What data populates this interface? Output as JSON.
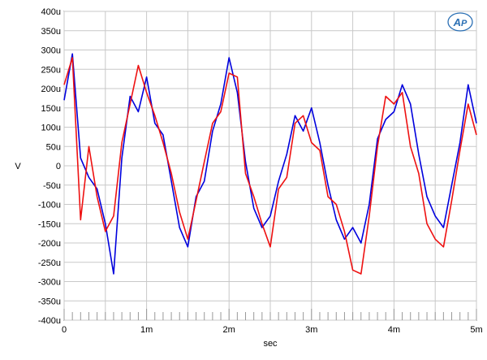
{
  "chart_data": {
    "type": "line",
    "title": "",
    "xlabel": "sec",
    "ylabel": "V",
    "xlim": [
      0,
      0.005
    ],
    "ylim": [
      -0.0004,
      0.0004
    ],
    "grid": true,
    "legend": "none",
    "x_tick_labels": [
      "0",
      "1m",
      "2m",
      "3m",
      "4m",
      "5m"
    ],
    "x_tick_values": [
      0,
      0.001,
      0.002,
      0.003,
      0.004,
      0.005
    ],
    "y_tick_labels": [
      "400u",
      "350u",
      "300u",
      "250u",
      "200u",
      "150u",
      "100u",
      "50u",
      "0",
      "-50u",
      "-100u",
      "-150u",
      "-200u",
      "-250u",
      "-300u",
      "-350u",
      "-400u"
    ],
    "y_tick_values": [
      0.0004,
      0.00035,
      0.0003,
      0.00025,
      0.0002,
      0.00015,
      0.0001,
      5e-05,
      0,
      -5e-05,
      -0.0001,
      -0.00015,
      -0.0002,
      -0.00025,
      -0.0003,
      -0.00035,
      -0.0004
    ],
    "logo_text": "AP",
    "colors": {
      "series1": "#0000dd",
      "series2": "#ee1111",
      "grid": "#c8c8c8",
      "logo": "#2a6fb4"
    },
    "series": [
      {
        "color": "#0000dd",
        "x": [
          0,
          0.0001,
          0.0002,
          0.0003,
          0.0004,
          0.0005,
          0.0006,
          0.0007,
          0.0008,
          0.0009,
          0.001,
          0.0011,
          0.0012,
          0.0013,
          0.0014,
          0.0015,
          0.0016,
          0.0017,
          0.0018,
          0.0019,
          0.002,
          0.0021,
          0.0022,
          0.0023,
          0.0024,
          0.0025,
          0.0026,
          0.0027,
          0.0028,
          0.0029,
          0.003,
          0.0031,
          0.0032,
          0.0033,
          0.0034,
          0.0035,
          0.0036,
          0.0037,
          0.0038,
          0.0039,
          0.004,
          0.0041,
          0.0042,
          0.0043,
          0.0044,
          0.0045,
          0.0046,
          0.0047,
          0.0048,
          0.0049,
          0.005
        ],
        "y": [
          0.00017,
          0.00029,
          2e-05,
          -3e-05,
          -6e-05,
          -0.00015,
          -0.00028,
          2e-05,
          0.00018,
          0.00014,
          0.00023,
          0.00011,
          8e-05,
          -4e-05,
          -0.00016,
          -0.00021,
          -8e-05,
          -4e-05,
          9e-05,
          0.00016,
          0.00028,
          0.00019,
          1e-05,
          -0.00011,
          -0.00016,
          -0.00013,
          -4e-05,
          3e-05,
          0.00013,
          9e-05,
          0.00015,
          6e-05,
          -5e-05,
          -0.00014,
          -0.00019,
          -0.00016,
          -0.0002,
          -0.0001,
          7e-05,
          0.00012,
          0.00014,
          0.00021,
          0.00016,
          3e-05,
          -8e-05,
          -0.00013,
          -0.00016,
          -5e-05,
          6e-05,
          0.00021,
          0.00011
        ]
      },
      {
        "color": "#ee1111",
        "x": [
          0,
          0.0001,
          0.0002,
          0.0003,
          0.0004,
          0.0005,
          0.0006,
          0.0007,
          0.0008,
          0.0009,
          0.001,
          0.0011,
          0.0012,
          0.0013,
          0.0014,
          0.0015,
          0.0016,
          0.0017,
          0.0018,
          0.0019,
          0.002,
          0.0021,
          0.0022,
          0.0023,
          0.0024,
          0.0025,
          0.0026,
          0.0027,
          0.0028,
          0.0029,
          0.003,
          0.0031,
          0.0032,
          0.0033,
          0.0034,
          0.0035,
          0.0036,
          0.0037,
          0.0038,
          0.0039,
          0.004,
          0.0041,
          0.0042,
          0.0043,
          0.0044,
          0.0045,
          0.0046,
          0.0047,
          0.0048,
          0.0049,
          0.005
        ],
        "y": [
          0.00021,
          0.00028,
          -0.00014,
          5e-05,
          -8e-05,
          -0.00017,
          -0.00013,
          6e-05,
          0.00016,
          0.00026,
          0.00019,
          0.00013,
          6e-05,
          -2e-05,
          -0.00012,
          -0.00019,
          -9e-05,
          1e-05,
          0.00011,
          0.00014,
          0.00024,
          0.00023,
          -2e-05,
          -8e-05,
          -0.00015,
          -0.00021,
          -6e-05,
          -3e-05,
          0.00011,
          0.00013,
          6e-05,
          4e-05,
          -8e-05,
          -0.0001,
          -0.00017,
          -0.00027,
          -0.00028,
          -0.00013,
          5e-05,
          0.00018,
          0.00016,
          0.00019,
          5e-05,
          -2e-05,
          -0.00015,
          -0.00019,
          -0.00021,
          -9e-05,
          4e-05,
          0.00016,
          8e-05
        ]
      }
    ]
  }
}
